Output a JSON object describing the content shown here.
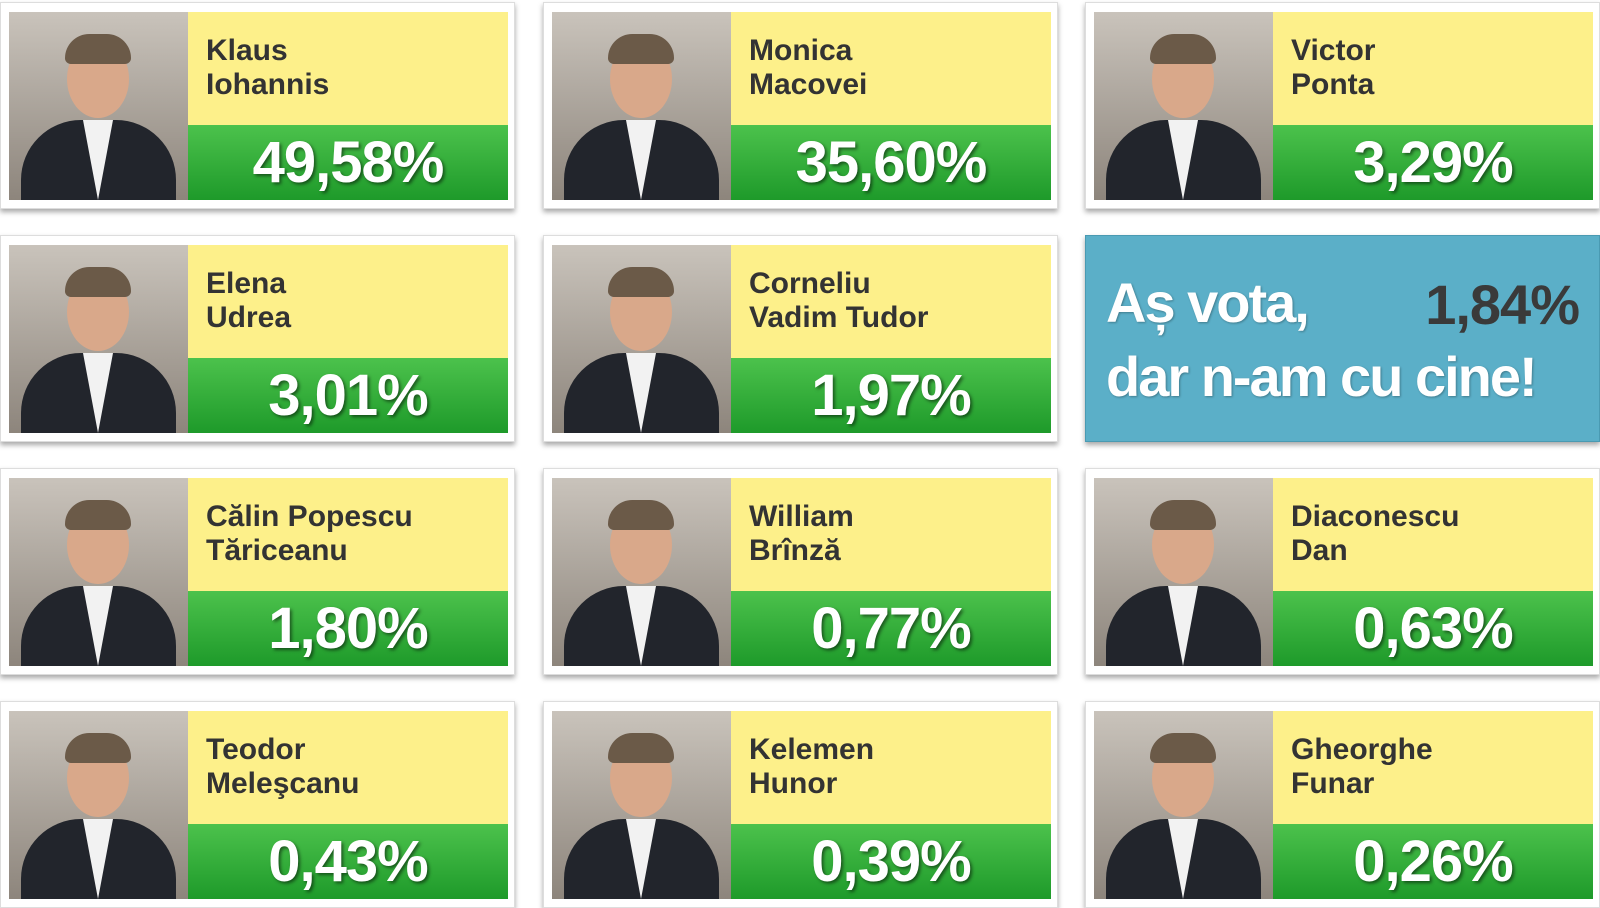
{
  "cards": [
    {
      "name": [
        "Klaus",
        "Iohannis"
      ],
      "percent": "49,58%"
    },
    {
      "name": [
        "Monica",
        "Macovei"
      ],
      "percent": "35,60%"
    },
    {
      "name": [
        "Victor",
        "Ponta"
      ],
      "percent": "3,29%"
    },
    {
      "name": [
        "Elena",
        "Udrea"
      ],
      "percent": "3,01%"
    },
    {
      "name": [
        "Corneliu",
        "Vadim Tudor"
      ],
      "percent": "1,97%"
    },
    {
      "special": [
        "Aș vota,",
        "dar n-am cu cine!"
      ],
      "percent": "1,84%"
    },
    {
      "name": [
        "Călin Popescu",
        "Tăriceanu"
      ],
      "percent": "1,80%"
    },
    {
      "name": [
        "William",
        "Brînză"
      ],
      "percent": "0,77%"
    },
    {
      "name": [
        "Diaconescu",
        "Dan"
      ],
      "percent": "0,63%"
    },
    {
      "name": [
        "Teodor",
        "Meleşcanu"
      ],
      "percent": "0,43%"
    },
    {
      "name": [
        "Kelemen",
        "Hunor"
      ],
      "percent": "0,39%"
    },
    {
      "name": [
        "Gheorghe",
        "Funar"
      ],
      "percent": "0,26%"
    }
  ]
}
